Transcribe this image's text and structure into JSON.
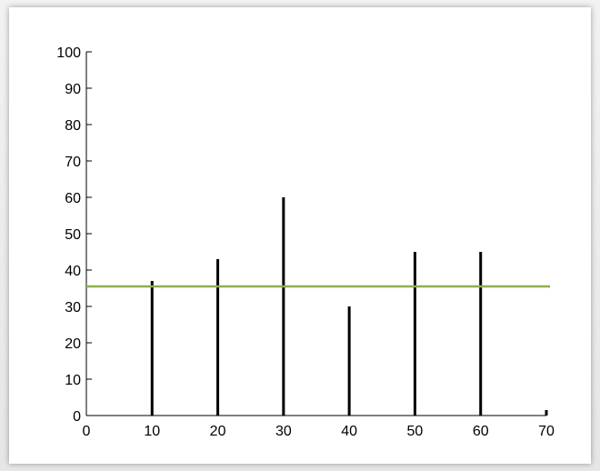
{
  "chart_data": {
    "type": "bar",
    "x": [
      10,
      20,
      30,
      40,
      50,
      60,
      70
    ],
    "values": [
      37,
      43,
      60,
      30,
      45,
      45,
      1.5
    ],
    "reference_line": {
      "y": 35.5,
      "color": "#8db04f"
    },
    "xlim": [
      0,
      70
    ],
    "ylim": [
      0,
      100
    ],
    "x_ticks": [
      0,
      10,
      20,
      30,
      40,
      50,
      60,
      70
    ],
    "y_ticks": [
      0,
      10,
      20,
      30,
      40,
      50,
      60,
      70,
      80,
      90,
      100
    ],
    "bar_color": "#000000",
    "grid": false
  }
}
